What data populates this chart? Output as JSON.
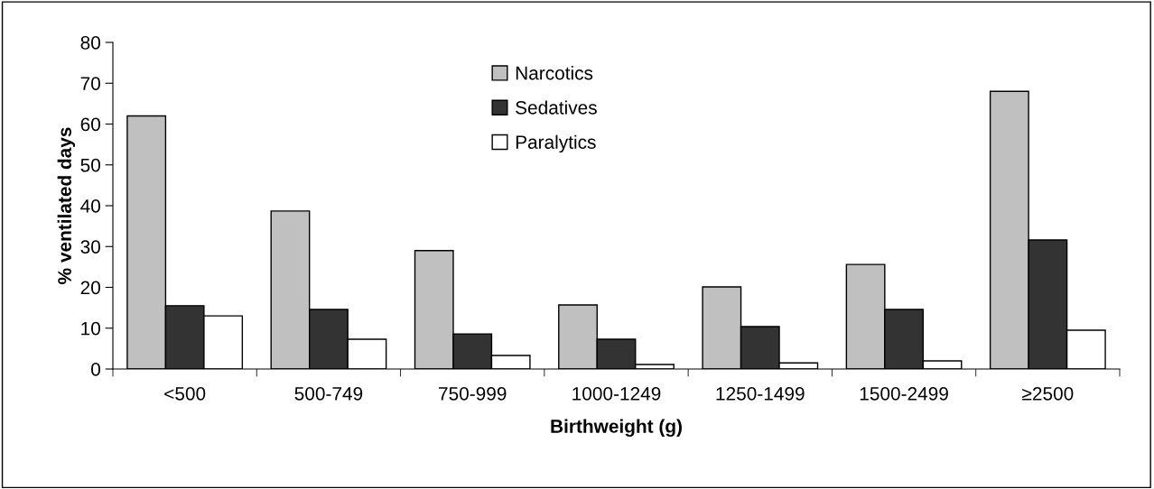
{
  "chart_data": {
    "type": "bar",
    "xlabel": "Birthweight (g)",
    "ylabel": "% ventilated days",
    "categories": [
      "<500",
      "500-749",
      "750-999",
      "1000-1249",
      "1250-1499",
      "1500-2499",
      "≥2500"
    ],
    "series": [
      {
        "name": "Narcotics",
        "color": "#c0c0c0",
        "values": [
          62,
          38.7,
          29,
          15.7,
          20.1,
          25.6,
          68
        ]
      },
      {
        "name": "Sedatives",
        "color": "#333333",
        "values": [
          15.5,
          14.6,
          8.6,
          7.3,
          10.4,
          14.6,
          31.6
        ]
      },
      {
        "name": "Paralytics",
        "color": "#ffffff",
        "values": [
          13,
          7.3,
          3.3,
          1.1,
          1.5,
          2,
          9.5
        ]
      }
    ],
    "ylim": [
      0,
      80
    ],
    "yticks": [
      0,
      10,
      20,
      30,
      40,
      50,
      60,
      70,
      80
    ],
    "grid": false,
    "legend": "top"
  }
}
